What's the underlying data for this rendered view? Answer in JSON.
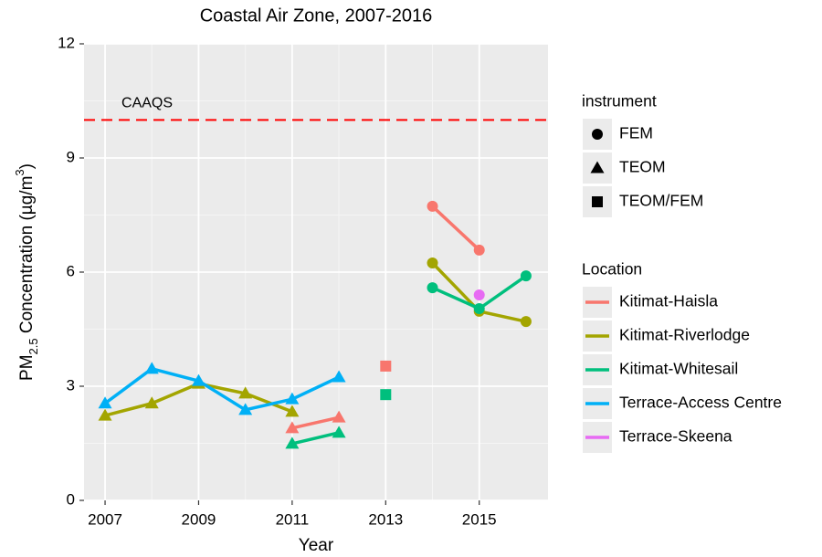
{
  "chart_data": {
    "type": "line",
    "title": "Coastal Air Zone, 2007-2016",
    "xlabel": "Year",
    "ylabel": [
      {
        "text": "PM"
      },
      {
        "text": "2.5",
        "sub": true
      },
      {
        "text": " Concentration (µg/m"
      },
      {
        "text": "3",
        "sup": true
      },
      {
        "text": ")"
      }
    ],
    "x": [
      2007,
      2008,
      2009,
      2010,
      2011,
      2012,
      2013,
      2014,
      2015,
      2016
    ],
    "xlim": [
      2006.55,
      2016.47
    ],
    "xticks": [
      2007,
      2009,
      2011,
      2013,
      2015
    ],
    "ylim": [
      0,
      12
    ],
    "yticks": [
      0,
      3,
      6,
      9,
      12
    ],
    "grid": true,
    "reference_line": {
      "value": 10,
      "label": "CAAQS",
      "color": "#ff0000"
    },
    "shape_legend": {
      "title": "instrument",
      "items": [
        "FEM",
        "TEOM",
        "TEOM/FEM"
      ],
      "shapes": [
        "circle",
        "triangle",
        "square"
      ]
    },
    "legend_title": "Location",
    "series": [
      {
        "name": "Kitimat-Haisla",
        "color": "#f8766d",
        "values": [
          null,
          null,
          null,
          null,
          1.9,
          2.18,
          3.53,
          7.73,
          6.58,
          null
        ],
        "instrument": [
          null,
          null,
          null,
          null,
          "TEOM",
          "TEOM",
          "TEOM/FEM",
          "FEM",
          "FEM",
          null
        ]
      },
      {
        "name": "Kitimat-Riverlodge",
        "color": "#a3a500",
        "values": [
          2.23,
          2.55,
          3.07,
          2.81,
          2.33,
          null,
          null,
          6.24,
          4.97,
          4.7
        ],
        "instrument": [
          "TEOM",
          "TEOM",
          "TEOM",
          "TEOM",
          "TEOM",
          null,
          null,
          "FEM",
          "FEM",
          "FEM"
        ]
      },
      {
        "name": "Kitimat-Whitesail",
        "color": "#00bf7d",
        "values": [
          null,
          null,
          null,
          null,
          1.49,
          1.78,
          2.78,
          5.59,
          5.04,
          5.9
        ],
        "instrument": [
          null,
          null,
          null,
          null,
          "TEOM",
          "TEOM",
          "TEOM/FEM",
          "FEM",
          "FEM",
          "FEM"
        ]
      },
      {
        "name": "Terrace-Access Centre",
        "color": "#00b0f6",
        "values": [
          2.55,
          3.46,
          3.14,
          2.38,
          2.66,
          3.24,
          null,
          null,
          null,
          null
        ],
        "instrument": [
          "TEOM",
          "TEOM",
          "TEOM",
          "TEOM",
          "TEOM",
          "TEOM",
          null,
          null,
          null,
          null
        ]
      },
      {
        "name": "Terrace-Skeena",
        "color": "#e76bf3",
        "values": [
          null,
          null,
          null,
          null,
          null,
          null,
          null,
          null,
          5.4,
          null
        ],
        "instrument": [
          null,
          null,
          null,
          null,
          null,
          null,
          null,
          null,
          "FEM",
          null
        ]
      }
    ]
  }
}
